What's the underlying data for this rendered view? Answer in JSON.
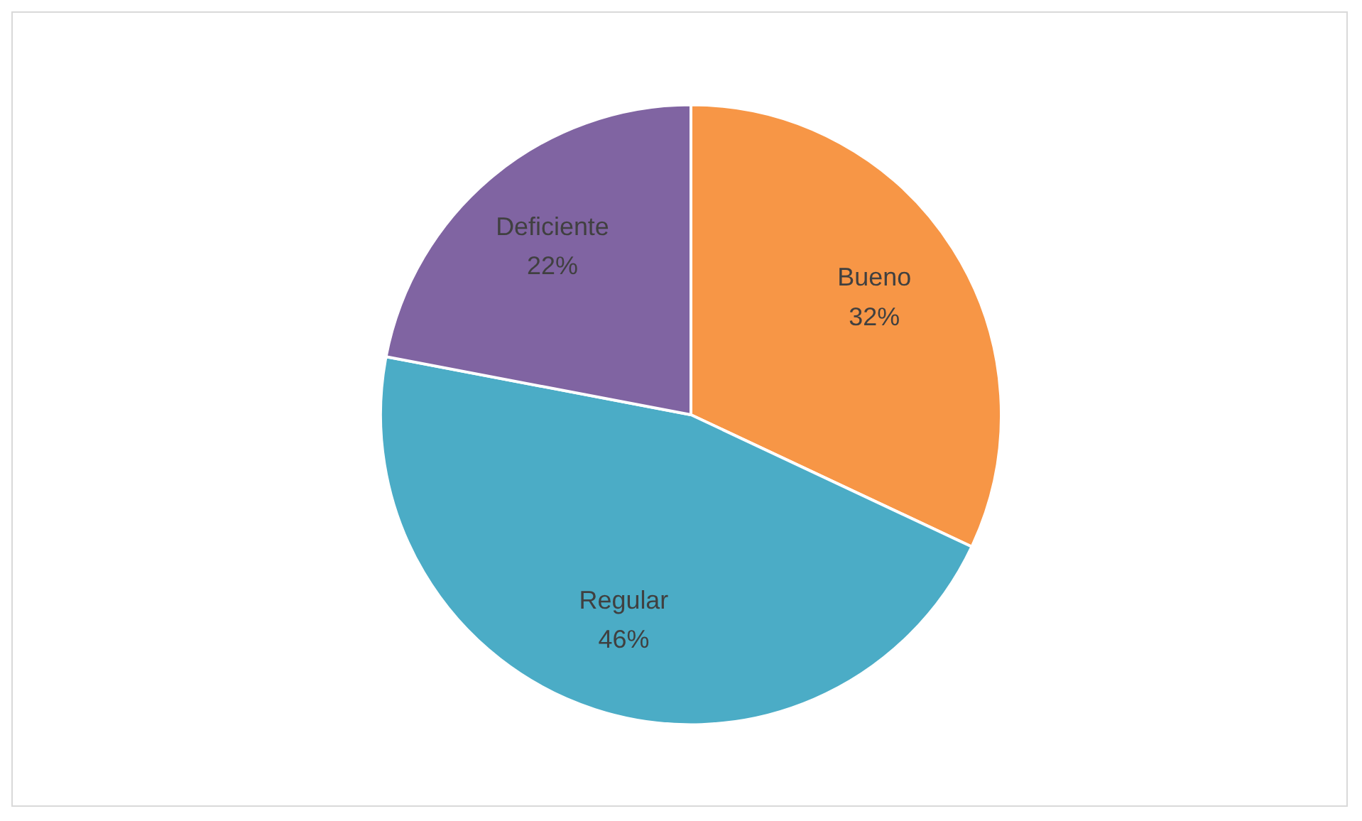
{
  "chart_data": {
    "type": "pie",
    "categories": [
      "Bueno",
      "Regular",
      "Deficiente"
    ],
    "values": [
      32,
      46,
      22
    ],
    "value_labels": [
      "32%",
      "46%",
      "22%"
    ],
    "colors": [
      "#f79646",
      "#4bacc6",
      "#8064a2"
    ],
    "legend": false
  }
}
